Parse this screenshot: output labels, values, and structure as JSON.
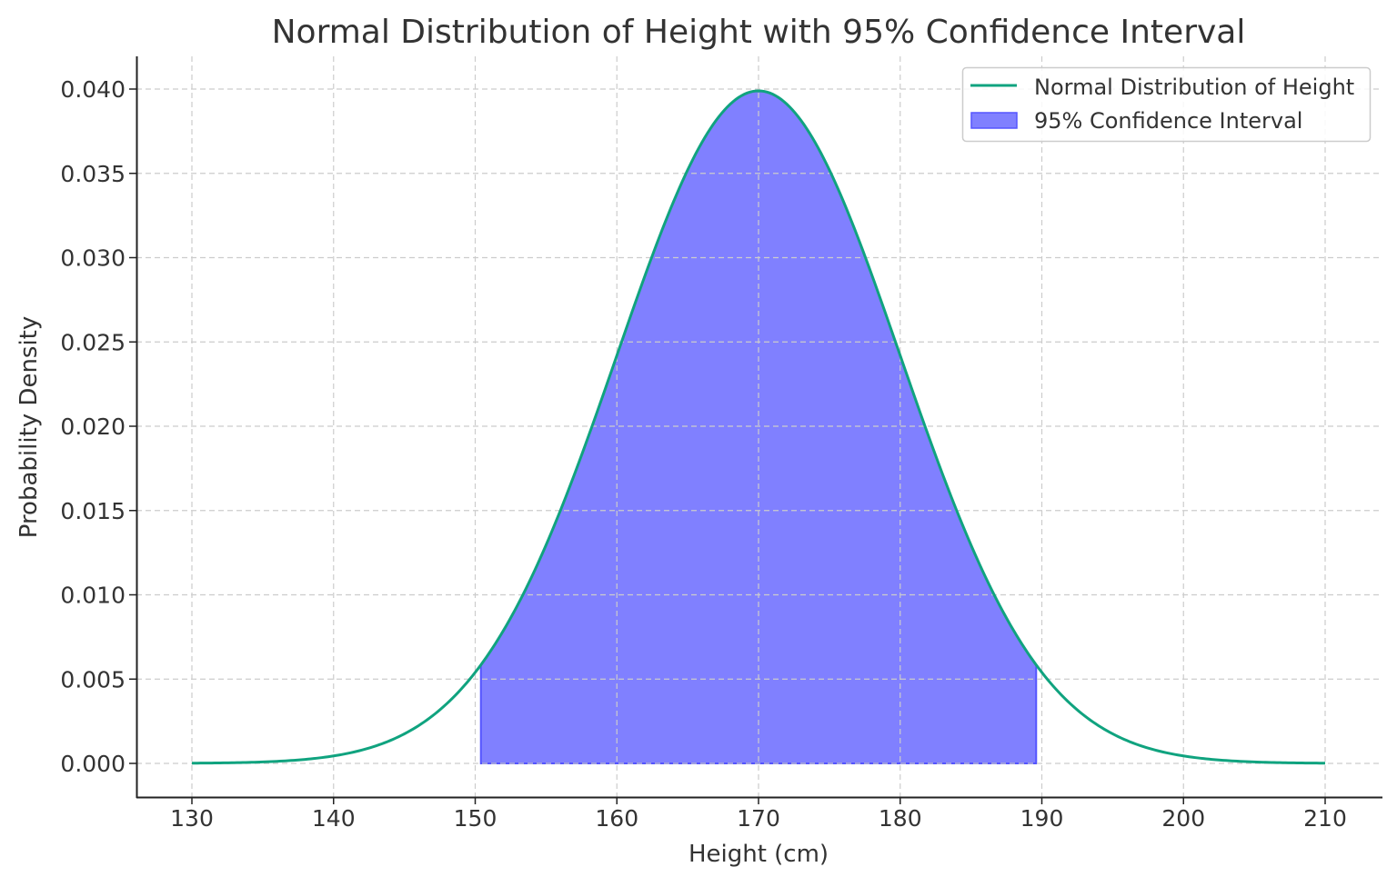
{
  "chart_data": {
    "type": "area",
    "title": "Normal Distribution of Height with 95% Confidence Interval",
    "xlabel": "Height (cm)",
    "ylabel": "Probability Density",
    "xlim": [
      125.6,
      213.5
    ],
    "ylim": [
      -0.002,
      0.042
    ],
    "xticks": [
      "130",
      "140",
      "150",
      "160",
      "170",
      "180",
      "190",
      "200",
      "210"
    ],
    "yticks": [
      "0.000",
      "0.005",
      "0.010",
      "0.015",
      "0.020",
      "0.025",
      "0.030",
      "0.035",
      "0.040"
    ],
    "grid": true,
    "legend_position": "top-right",
    "series": [
      {
        "name": "Normal Distribution of Height",
        "kind": "line",
        "mean": 170,
        "std": 10,
        "x_range": [
          130,
          210
        ],
        "color": "#10a37f"
      },
      {
        "name": "95% Confidence Interval",
        "kind": "fill",
        "x_range": [
          150.4,
          189.6
        ],
        "color": "#8080ff",
        "edge_color": "#5555ff"
      }
    ]
  }
}
